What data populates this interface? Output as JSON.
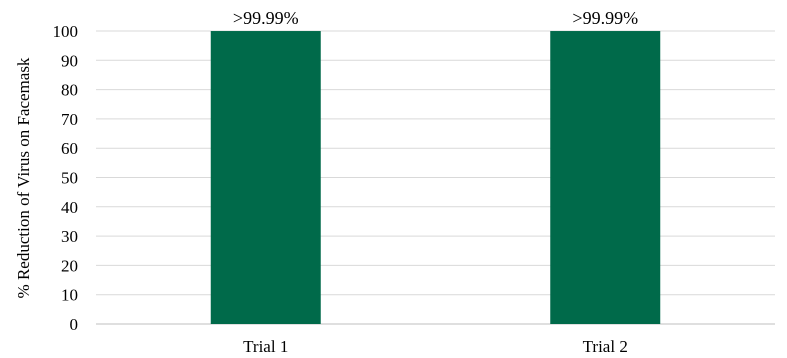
{
  "chart_data": {
    "type": "bar",
    "categories": [
      "Trial 1",
      "Trial 2"
    ],
    "values": [
      99.99,
      99.99
    ],
    "data_labels": [
      ">99.99%",
      ">99.99%"
    ],
    "ylabel": "% Reduction of Virus on Facemask",
    "xlabel": "",
    "ylim": [
      0,
      100
    ],
    "yticks": [
      0,
      10,
      20,
      30,
      40,
      50,
      60,
      70,
      80,
      90,
      100
    ],
    "grid": true,
    "bar_color": "#006a4a"
  }
}
